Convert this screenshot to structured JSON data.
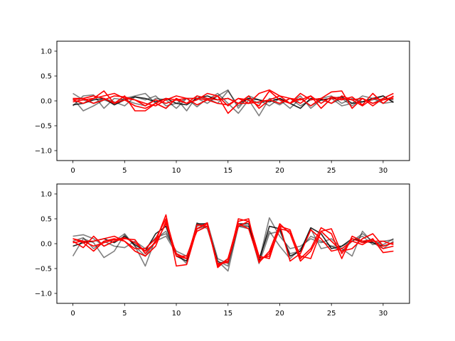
{
  "chart_data": [
    {
      "type": "line",
      "ylim": [
        -1.2,
        1.2
      ],
      "xlim": [
        -1.55,
        32.55
      ],
      "xticks": [
        0,
        5,
        10,
        15,
        20,
        25,
        30
      ],
      "yticks": [
        -1.0,
        -0.5,
        0.0,
        0.5,
        1.0
      ],
      "ytick_labels": [
        "−1.0",
        "−0.5",
        "0.0",
        "0.5",
        "1.0"
      ],
      "grid": false,
      "series": [
        {
          "color": "#000000",
          "opacity": 0.5,
          "values": [
            0.15,
            0.02,
            -0.05,
            0.05,
            -0.02,
            -0.1,
            0.08,
            0.02,
            0.1,
            -0.1,
            -0.05,
            0.05,
            -0.12,
            0.05,
            -0.05,
            0.2,
            -0.1,
            0.05,
            -0.05,
            0.02,
            -0.08,
            0.05,
            -0.1,
            0.02,
            0.05,
            0.1,
            -0.05,
            0.05,
            -0.02,
            0.02,
            0.1,
            -0.03
          ]
        },
        {
          "color": "#000000",
          "opacity": 0.5,
          "values": [
            0.05,
            -0.2,
            -0.1,
            0.02,
            -0.05,
            0.05,
            0.1,
            0.15,
            -0.05,
            -0.15,
            0.05,
            -0.2,
            0.1,
            0.02,
            0.15,
            -0.05,
            -0.25,
            0.02,
            -0.3,
            0.05,
            0.02,
            -0.15,
            0.05,
            -0.1,
            0.02,
            -0.05,
            0.05,
            -0.1,
            0.05,
            -0.05,
            0.05,
            0.02
          ]
        },
        {
          "color": "#000000",
          "opacity": 0.5,
          "values": [
            -0.1,
            0.1,
            0.12,
            -0.15,
            0.05,
            0.02,
            -0.05,
            -0.1,
            0.05,
            0.02,
            -0.15,
            0.05,
            0.05,
            -0.05,
            0.1,
            0.22,
            -0.15,
            0.1,
            0.02,
            -0.1,
            0.05,
            -0.05,
            0.1,
            -0.15,
            0.02,
            0.05,
            -0.1,
            -0.05,
            0.1,
            0.05,
            -0.05,
            -0.02
          ]
        },
        {
          "color": "#000000",
          "opacity": 0.85,
          "values": [
            -0.08,
            -0.05,
            0.02,
            0.05,
            -0.08,
            0.02,
            0.08,
            0.05,
            -0.02,
            0.05,
            -0.05,
            -0.08,
            0.05,
            0.1,
            0.02,
            0.05,
            -0.05,
            0.05,
            0.02,
            -0.02,
            0.05,
            -0.05,
            -0.15,
            0.05,
            0.02,
            0.05,
            0.08,
            -0.05,
            -0.02,
            0.05,
            0.1,
            -0.03
          ]
        },
        {
          "color": "#ff0000",
          "opacity": 1.0,
          "values": [
            0.02,
            -0.05,
            0.05,
            0.2,
            -0.05,
            0.1,
            -0.2,
            -0.2,
            -0.05,
            -0.15,
            0.05,
            -0.05,
            0.02,
            0.15,
            0.1,
            -0.1,
            0.05,
            0.02,
            -0.1,
            0.2,
            0.02,
            -0.05,
            0.15,
            0.02,
            0.05,
            0.18,
            0.2,
            -0.15,
            0.05,
            -0.1,
            0.05,
            0.15
          ]
        },
        {
          "color": "#ff0000",
          "opacity": 1.0,
          "values": [
            0.05,
            0.05,
            0.1,
            0.05,
            -0.05,
            0.02,
            -0.1,
            -0.15,
            -0.05,
            0.05,
            0.02,
            0.05,
            0.05,
            0.02,
            -0.05,
            -0.08,
            0.05,
            -0.05,
            0.15,
            0.22,
            0.1,
            -0.05,
            0.05,
            -0.1,
            0.05,
            -0.05,
            0.1,
            0.02,
            0.05,
            -0.05,
            0.02,
            0.05
          ]
        },
        {
          "color": "#ff0000",
          "opacity": 1.0,
          "values": [
            -0.02,
            0.02,
            0.05,
            0.1,
            0.15,
            0.05,
            0.02,
            -0.05,
            -0.1,
            0.02,
            0.1,
            0.05,
            -0.08,
            0.02,
            0.1,
            -0.25,
            -0.05,
            0.1,
            -0.15,
            0.02,
            -0.05,
            0.05,
            0.02,
            0.1,
            -0.15,
            0.05,
            0.02,
            0.08,
            -0.08,
            0.15,
            -0.05,
            0.1
          ]
        },
        {
          "color": "#ff0000",
          "opacity": 1.0,
          "values": [
            0.02,
            0.05,
            -0.05,
            0.02,
            0.1,
            0.08,
            0.02,
            -0.1,
            0.02,
            -0.05,
            0.02,
            -0.05,
            0.1,
            0.05,
            0.02,
            0.05,
            -0.05,
            -0.05,
            -0.02,
            0.02,
            0.1,
            0.05,
            -0.05,
            0.1,
            -0.05,
            0.08,
            0.05,
            0.02,
            -0.1,
            0.05,
            0.02,
            0.08
          ]
        }
      ]
    },
    {
      "type": "line",
      "ylim": [
        -1.2,
        1.2
      ],
      "xlim": [
        -1.55,
        32.55
      ],
      "xticks": [
        0,
        5,
        10,
        15,
        20,
        25,
        30
      ],
      "yticks": [
        -1.0,
        -0.5,
        0.0,
        0.5,
        1.0
      ],
      "ytick_labels": [
        "−1.0",
        "−0.5",
        "0.0",
        "0.5",
        "1.0"
      ],
      "grid": false,
      "series": [
        {
          "color": "#000000",
          "opacity": 0.5,
          "values": [
            -0.25,
            0.1,
            0.02,
            -0.28,
            -0.15,
            0.18,
            -0.05,
            -0.45,
            0.1,
            0.25,
            -0.2,
            -0.4,
            0.42,
            0.3,
            -0.35,
            -0.55,
            0.35,
            0.3,
            -0.35,
            0.52,
            0.15,
            -0.1,
            -0.05,
            0.1,
            0.02,
            0.1,
            -0.1,
            -0.25,
            0.25,
            0.02,
            -0.1,
            0.05
          ]
        },
        {
          "color": "#000000",
          "opacity": 0.5,
          "values": [
            0.15,
            0.18,
            0.1,
            -0.05,
            0.05,
            0.2,
            -0.05,
            -0.25,
            0.05,
            0.15,
            -0.2,
            -0.3,
            0.35,
            0.42,
            -0.3,
            -0.4,
            0.35,
            0.35,
            -0.4,
            0.2,
            0.25,
            -0.2,
            -0.15,
            0.3,
            -0.1,
            -0.05,
            -0.15,
            0.05,
            0.2,
            0.05,
            -0.02,
            0.1
          ]
        },
        {
          "color": "#000000",
          "opacity": 0.5,
          "values": [
            0.05,
            0.12,
            -0.1,
            0.05,
            -0.05,
            -0.08,
            0.05,
            -0.1,
            0.12,
            0.2,
            -0.15,
            -0.25,
            0.3,
            0.35,
            -0.35,
            -0.45,
            0.4,
            0.35,
            -0.3,
            0.25,
            -0.05,
            -0.3,
            -0.1,
            0.15,
            0.05,
            -0.05,
            -0.05,
            0.05,
            0.15,
            -0.02,
            0.05,
            0.08
          ]
        },
        {
          "color": "#000000",
          "opacity": 0.85,
          "values": [
            -0.05,
            0.02,
            0.05,
            0.1,
            0.02,
            0.15,
            -0.02,
            -0.15,
            0.2,
            0.35,
            -0.25,
            -0.35,
            0.4,
            0.4,
            -0.4,
            -0.35,
            0.4,
            0.4,
            -0.35,
            0.35,
            0.3,
            -0.25,
            -0.15,
            0.32,
            0.2,
            -0.1,
            -0.05,
            0.1,
            0.05,
            0.02,
            -0.05,
            0.02
          ]
        },
        {
          "color": "#ff0000",
          "opacity": 1.0,
          "values": [
            0.05,
            -0.08,
            0.15,
            -0.05,
            0.05,
            0.1,
            0.08,
            -0.2,
            0.05,
            0.58,
            -0.45,
            -0.42,
            0.3,
            0.4,
            -0.48,
            -0.3,
            0.45,
            0.5,
            -0.38,
            -0.15,
            0.38,
            -0.35,
            -0.2,
            0.28,
            0.1,
            -0.15,
            -0.1,
            0.05,
            -0.02,
            0.1,
            -0.18,
            -0.15
          ]
        },
        {
          "color": "#ff0000",
          "opacity": 1.0,
          "values": [
            0.1,
            0.02,
            -0.15,
            0.05,
            0.1,
            0.05,
            -0.1,
            -0.1,
            0.1,
            0.5,
            -0.25,
            -0.25,
            0.25,
            0.35,
            -0.4,
            -0.38,
            0.5,
            0.45,
            -0.25,
            -0.3,
            0.35,
            0.28,
            -0.3,
            -0.1,
            0.32,
            0.2,
            -0.3,
            0.15,
            0.05,
            0.08,
            -0.1,
            -0.05
          ]
        },
        {
          "color": "#ff0000",
          "opacity": 1.0,
          "values": [
            0.02,
            0.05,
            0.05,
            0.1,
            0.15,
            0.05,
            -0.15,
            -0.25,
            -0.05,
            0.45,
            -0.25,
            -0.3,
            0.3,
            0.42,
            -0.45,
            -0.3,
            0.4,
            0.3,
            -0.35,
            -0.2,
            0.4,
            0.2,
            -0.35,
            -0.15,
            0.25,
            0.05,
            -0.15,
            -0.1,
            0.1,
            0.2,
            -0.05,
            0.02
          ]
        },
        {
          "color": "#ff0000",
          "opacity": 1.0,
          "values": [
            0.1,
            0.05,
            -0.05,
            0.02,
            0.08,
            0.12,
            0.02,
            -0.15,
            0.02,
            0.4,
            -0.2,
            -0.3,
            0.38,
            0.35,
            -0.42,
            -0.35,
            0.35,
            0.45,
            -0.3,
            -0.25,
            0.3,
            0.25,
            -0.25,
            -0.3,
            0.25,
            0.3,
            -0.2,
            0.1,
            0.02,
            0.05,
            0.05,
            -0.02
          ]
        }
      ]
    }
  ]
}
